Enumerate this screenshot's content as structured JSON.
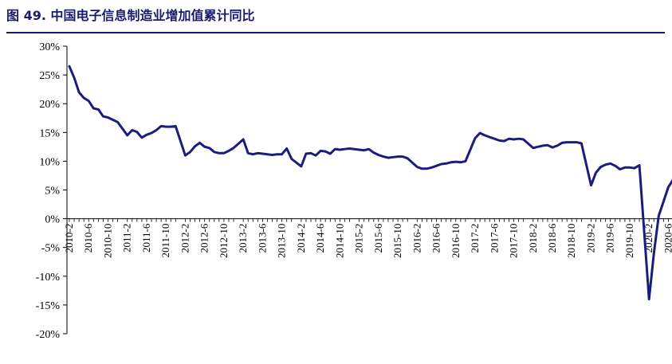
{
  "figure": {
    "title": "图 49. 中国电子信息制造业增加值累计同比"
  },
  "colors": {
    "title": "#1a1a6e",
    "rule": "#1a1a6e",
    "line": "#1c1c7c",
    "axis": "#000000"
  },
  "chart_data": {
    "type": "line",
    "title": "图 49. 中国电子信息制造业增加值累计同比",
    "xlabel": "",
    "ylabel": "",
    "ylim": [
      -20,
      30
    ],
    "yticks": [
      30,
      25,
      20,
      15,
      10,
      5,
      0,
      -5,
      -10,
      -15,
      -20
    ],
    "ytick_labels": [
      "30%",
      "25%",
      "20%",
      "15%",
      "10%",
      "5%",
      "0%",
      "-5%",
      "-10%",
      "-15%",
      "-20%"
    ],
    "x_tick_labels": [
      "2010-2",
      "2010-6",
      "2010-10",
      "2011-2",
      "2011-6",
      "2011-10",
      "2012-2",
      "2012-6",
      "2012-10",
      "2013-2",
      "2013-6",
      "2013-10",
      "2014-2",
      "2014-6",
      "2014-10",
      "2015-2",
      "2015-6",
      "2015-10",
      "2016-2",
      "2016-6",
      "2016-10",
      "2017-2",
      "2017-6",
      "2017-10",
      "2018-2",
      "2018-6",
      "2018-10",
      "2019-2",
      "2019-6",
      "2019-10",
      "2020-2",
      "2020-6"
    ],
    "grid": false,
    "legend": "none",
    "series": [
      {
        "unit": "%",
        "x": [
          "2010-2",
          "2010-3",
          "2010-4",
          "2010-5",
          "2010-6",
          "2010-7",
          "2010-8",
          "2010-9",
          "2010-10",
          "2010-11",
          "2010-12",
          "2011-2",
          "2011-3",
          "2011-4",
          "2011-5",
          "2011-6",
          "2011-7",
          "2011-8",
          "2011-9",
          "2011-10",
          "2011-11",
          "2011-12",
          "2012-2",
          "2012-3",
          "2012-4",
          "2012-5",
          "2012-6",
          "2012-7",
          "2012-8",
          "2012-9",
          "2012-10",
          "2012-11",
          "2012-12",
          "2013-2",
          "2013-3",
          "2013-4",
          "2013-5",
          "2013-6",
          "2013-7",
          "2013-8",
          "2013-9",
          "2013-10",
          "2013-11",
          "2013-12",
          "2014-2",
          "2014-3",
          "2014-4",
          "2014-5",
          "2014-6",
          "2014-7",
          "2014-8",
          "2014-9",
          "2014-10",
          "2014-11",
          "2014-12",
          "2015-2",
          "2015-3",
          "2015-4",
          "2015-5",
          "2015-6",
          "2015-7",
          "2015-8",
          "2015-9",
          "2015-10",
          "2015-11",
          "2015-12",
          "2016-2",
          "2016-3",
          "2016-4",
          "2016-5",
          "2016-6",
          "2016-7",
          "2016-8",
          "2016-9",
          "2016-10",
          "2016-11",
          "2016-12",
          "2017-2",
          "2017-3",
          "2017-4",
          "2017-5",
          "2017-6",
          "2017-7",
          "2017-8",
          "2017-9",
          "2017-10",
          "2017-11",
          "2017-12",
          "2018-2",
          "2018-3",
          "2018-4",
          "2018-5",
          "2018-6",
          "2018-7",
          "2018-8",
          "2018-9",
          "2018-10",
          "2018-11",
          "2018-12",
          "2019-2",
          "2019-3",
          "2019-4",
          "2019-5",
          "2019-6",
          "2019-7",
          "2019-8",
          "2019-9",
          "2019-10",
          "2019-11",
          "2019-12",
          "2020-2",
          "2020-3",
          "2020-4",
          "2020-5",
          "2020-6",
          "2020-7",
          "2020-8"
        ],
        "values": [
          26.5,
          24.5,
          22.0,
          21.0,
          20.5,
          19.2,
          19.0,
          17.8,
          17.6,
          17.2,
          16.8,
          14.5,
          15.4,
          15.1,
          14.1,
          14.6,
          14.9,
          15.4,
          16.1,
          16.0,
          16.0,
          16.1,
          11.0,
          11.6,
          12.6,
          13.2,
          12.5,
          12.3,
          11.6,
          11.4,
          11.4,
          11.8,
          12.3,
          13.8,
          11.4,
          11.2,
          11.4,
          11.3,
          11.2,
          11.1,
          11.2,
          11.2,
          12.2,
          10.4,
          9.1,
          11.3,
          11.4,
          11.0,
          11.8,
          11.7,
          11.3,
          12.1,
          12.0,
          12.1,
          12.2,
          12.0,
          11.9,
          12.1,
          11.5,
          11.1,
          10.8,
          10.6,
          10.7,
          10.8,
          10.8,
          10.5,
          9.0,
          8.7,
          8.7,
          8.9,
          9.2,
          9.5,
          9.6,
          9.8,
          9.9,
          9.8,
          10.0,
          14.0,
          14.9,
          14.5,
          14.2,
          13.9,
          13.6,
          13.5,
          13.9,
          13.8,
          13.9,
          13.8,
          12.3,
          12.5,
          12.7,
          12.8,
          12.4,
          12.7,
          13.2,
          13.3,
          13.3,
          13.3,
          13.1,
          5.8,
          8.0,
          9.0,
          9.4,
          9.6,
          9.2,
          8.6,
          8.9,
          8.9,
          8.8,
          9.3,
          -14.0,
          -6.0,
          0.5,
          3.0,
          5.5,
          6.8,
          7.0
        ]
      }
    ]
  }
}
